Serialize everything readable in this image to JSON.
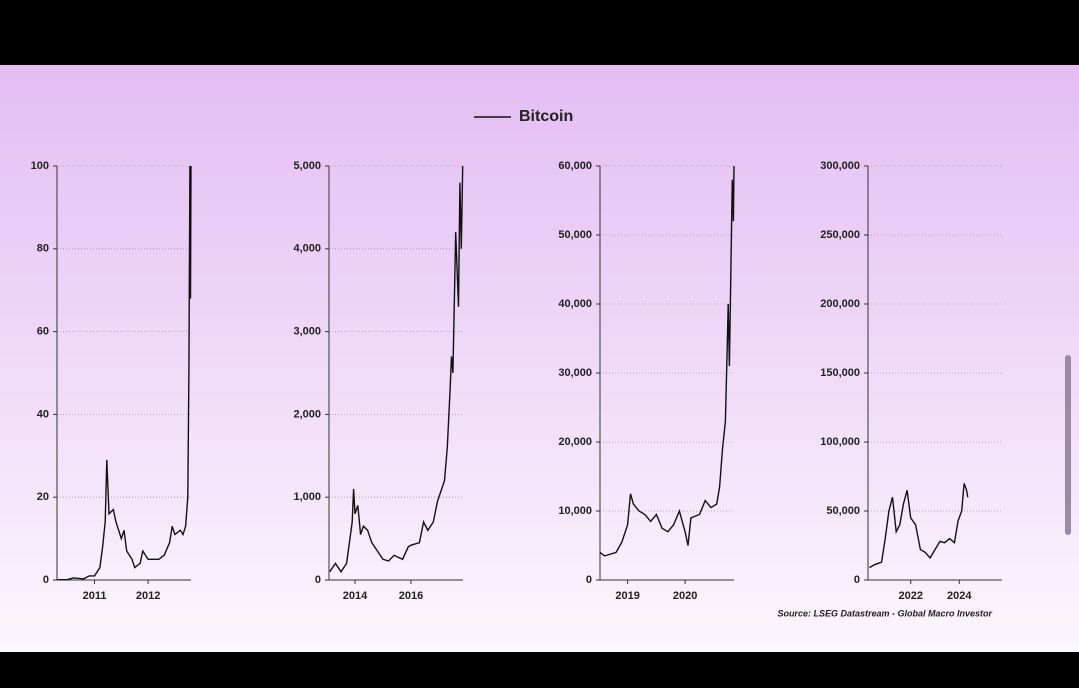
{
  "chart_data": [
    {
      "type": "line",
      "x": [
        2010.3,
        2010.5,
        2010.6,
        2010.8,
        2010.9,
        2011.0,
        2011.1,
        2011.15,
        2011.2,
        2011.23,
        2011.27,
        2011.35,
        2011.4,
        2011.5,
        2011.55,
        2011.6,
        2011.7,
        2011.75,
        2011.85,
        2011.9,
        2012.0,
        2012.2,
        2012.3,
        2012.4,
        2012.45,
        2012.5,
        2012.6,
        2012.65,
        2012.7,
        2012.74,
        2012.76,
        2012.78,
        2012.79,
        2012.8
      ],
      "series": [
        {
          "name": "Bitcoin",
          "color": "#111111",
          "values": [
            0.05,
            0.1,
            0.5,
            0.3,
            1,
            1,
            3,
            8,
            14,
            29,
            16,
            17,
            14,
            10,
            12,
            7,
            5,
            3,
            4,
            7,
            5,
            5,
            6,
            9,
            13,
            11,
            12,
            11,
            13,
            20,
            50,
            100,
            68,
            100
          ]
        }
      ],
      "xlim": [
        2010.3,
        2012.8
      ],
      "xticks": [
        2011,
        2012
      ],
      "ylim": [
        0,
        100
      ],
      "yticks": [
        0,
        20,
        40,
        60,
        80,
        100
      ],
      "grid": true
    },
    {
      "type": "line",
      "x": [
        2013.1,
        2013.3,
        2013.5,
        2013.7,
        2013.9,
        2013.95,
        2014.0,
        2014.1,
        2014.2,
        2014.3,
        2014.45,
        2014.6,
        2014.8,
        2015.0,
        2015.2,
        2015.4,
        2015.5,
        2015.7,
        2015.9,
        2016.0,
        2016.3,
        2016.45,
        2016.6,
        2016.8,
        2016.95,
        2017.1,
        2017.2,
        2017.3,
        2017.4,
        2017.45,
        2017.5,
        2017.6,
        2017.7,
        2017.75,
        2017.8,
        2017.85
      ],
      "series": [
        {
          "color": "#111111",
          "values": [
            100,
            200,
            100,
            200,
            700,
            1100,
            800,
            900,
            550,
            650,
            600,
            450,
            350,
            250,
            230,
            300,
            280,
            250,
            400,
            420,
            450,
            700,
            600,
            700,
            950,
            1100,
            1200,
            1600,
            2300,
            2700,
            2500,
            4200,
            3300,
            4800,
            4000,
            5000
          ]
        }
      ],
      "xlim": [
        2013.07,
        2017.86
      ],
      "xticks": [
        2014,
        2016
      ],
      "ylim": [
        0,
        5000
      ],
      "yticks": [
        0,
        {
          "value": 1000,
          "label": "1,000"
        },
        {
          "value": 2000,
          "label": "2,000"
        },
        {
          "value": 3000,
          "label": "3,000"
        },
        {
          "value": 4000,
          "label": "4,000"
        },
        {
          "value": 5000,
          "label": "5,000"
        }
      ],
      "grid": true
    },
    {
      "type": "line",
      "x": [
        2018.52,
        2018.6,
        2018.8,
        2018.9,
        2019.0,
        2019.05,
        2019.1,
        2019.2,
        2019.3,
        2019.4,
        2019.5,
        2019.6,
        2019.7,
        2019.8,
        2019.9,
        2019.95,
        2020.0,
        2020.05,
        2020.1,
        2020.25,
        2020.35,
        2020.45,
        2020.55,
        2020.6,
        2020.65,
        2020.7,
        2020.73,
        2020.75,
        2020.77,
        2020.8,
        2020.82,
        2020.84,
        2020.85
      ],
      "series": [
        {
          "color": "#111111",
          "values": [
            4000,
            3500,
            4000,
            5500,
            8000,
            12500,
            11000,
            10000,
            9500,
            8500,
            9500,
            7500,
            7000,
            8000,
            10000,
            8500,
            7000,
            5000,
            9000,
            9500,
            11500,
            10500,
            11000,
            13500,
            19000,
            23000,
            33000,
            40000,
            31000,
            47000,
            58000,
            52000,
            60000
          ]
        }
      ],
      "xlim": [
        2018.52,
        2020.85
      ],
      "xticks": [
        2019,
        2020
      ],
      "ylim": [
        0,
        60000
      ],
      "yticks": [
        0,
        {
          "value": 10000,
          "label": "10,000"
        },
        {
          "value": 20000,
          "label": "20,000"
        },
        {
          "value": 30000,
          "label": "30,000"
        },
        {
          "value": 40000,
          "label": "40,000"
        },
        {
          "value": 50000,
          "label": "50,000"
        },
        {
          "value": 60000,
          "label": "60,000"
        }
      ],
      "grid": true
    },
    {
      "type": "line",
      "x": [
        2020.3,
        2020.5,
        2020.8,
        2020.95,
        2021.1,
        2021.25,
        2021.4,
        2021.55,
        2021.7,
        2021.85,
        2022.0,
        2022.2,
        2022.4,
        2022.6,
        2022.8,
        2023.0,
        2023.2,
        2023.4,
        2023.6,
        2023.8,
        2023.95,
        2024.1,
        2024.2,
        2024.3,
        2024.35
      ],
      "series": [
        {
          "color": "#111111",
          "values": [
            9000,
            11000,
            13000,
            30000,
            50000,
            60000,
            35000,
            40000,
            55000,
            65000,
            45000,
            40000,
            22000,
            20000,
            16000,
            22000,
            28000,
            27000,
            30000,
            27000,
            43000,
            50000,
            70000,
            65000,
            60000
          ]
        }
      ],
      "xlim": [
        2020.24,
        2025.76
      ],
      "xticks": [
        2022,
        2024
      ],
      "ylim": [
        0,
        300000
      ],
      "yticks": [
        0,
        {
          "value": 50000,
          "label": "50,000"
        },
        {
          "value": 100000,
          "label": "100,000"
        },
        {
          "value": 150000,
          "label": "150,000"
        },
        {
          "value": 200000,
          "label": "200,000"
        },
        {
          "value": 250000,
          "label": "250,000"
        },
        {
          "value": 300000,
          "label": "300,000"
        }
      ],
      "grid": true
    }
  ],
  "source": "Source: LSEG Datastream - Global Macro Investor"
}
